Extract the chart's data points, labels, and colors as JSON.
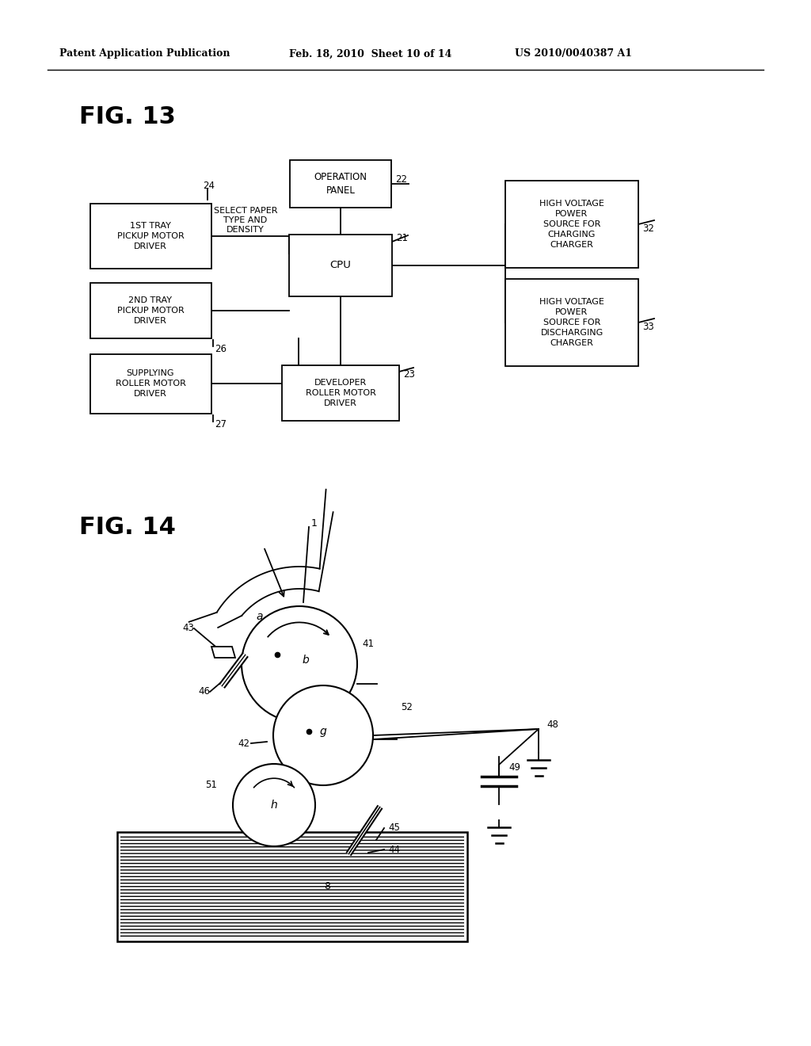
{
  "bg_color": "#ffffff",
  "header_left": "Patent Application Publication",
  "header_mid": "Feb. 18, 2010  Sheet 10 of 14",
  "header_right": "US 2010/0040387 A1",
  "fig13_label": "FIG. 13",
  "fig14_label": "FIG. 14"
}
